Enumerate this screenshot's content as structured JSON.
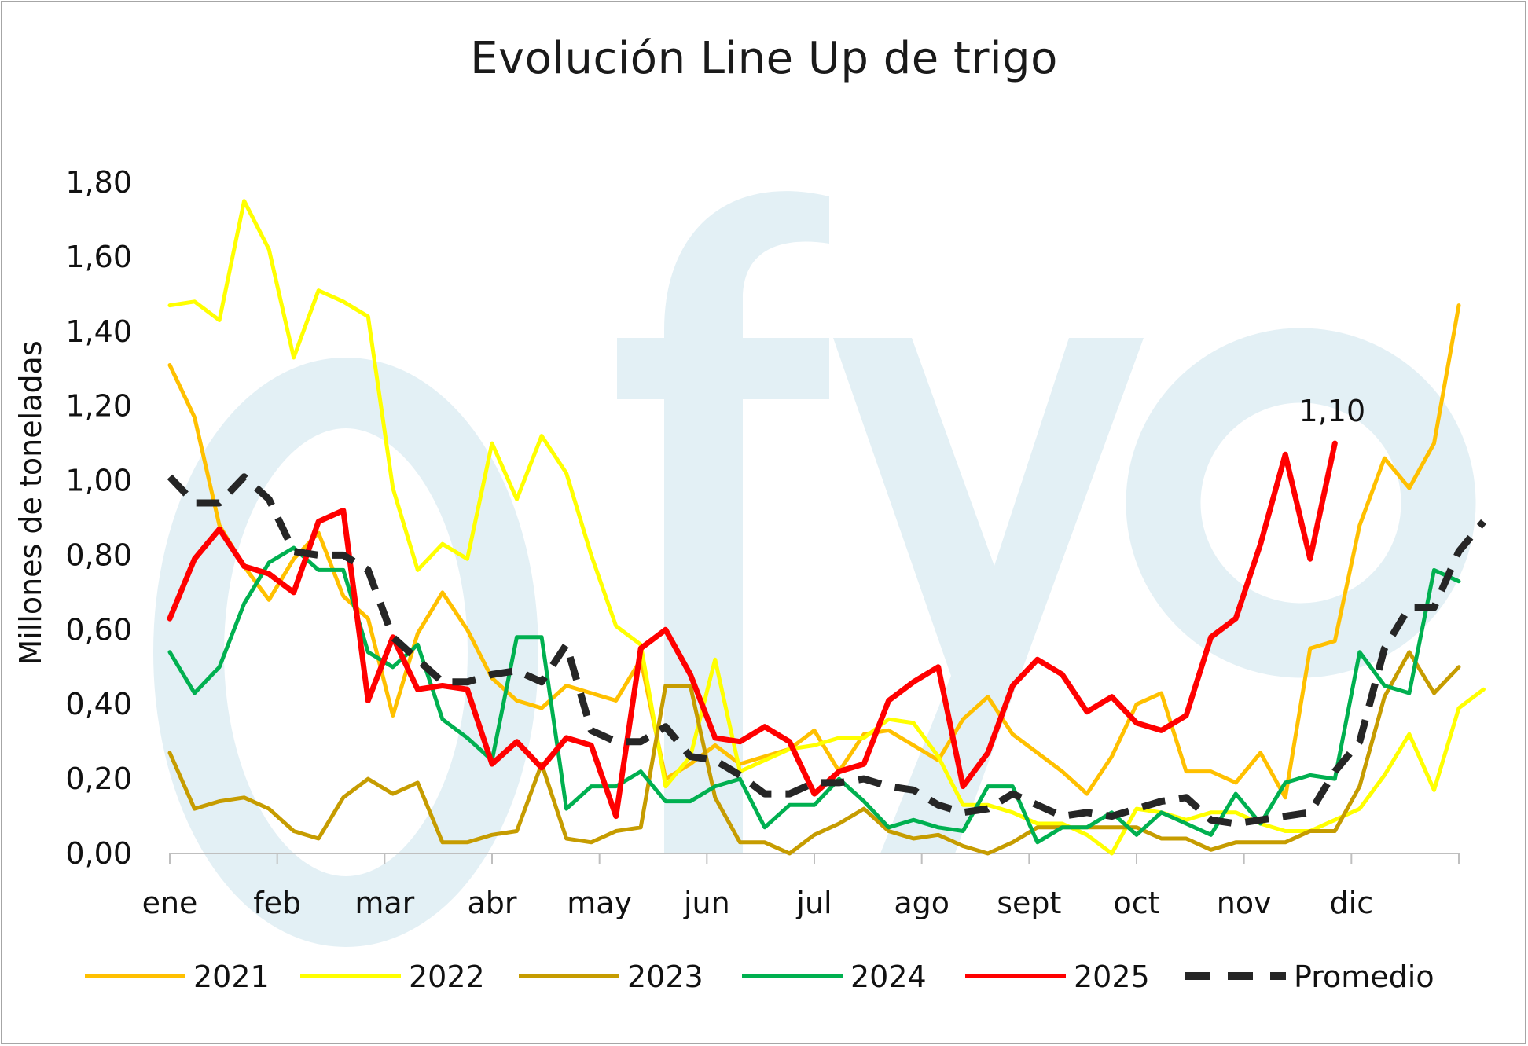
{
  "chart_data": {
    "type": "line",
    "title": "Evolución Line Up de trigo",
    "ylabel": "Millones de toneladas",
    "xlabel": "",
    "ylim": [
      0,
      1.8
    ],
    "yticks": [
      "0,00",
      "0,20",
      "0,40",
      "0,60",
      "0,80",
      "1,00",
      "1,20",
      "1,40",
      "1,60",
      "1,80"
    ],
    "ytick_values": [
      0,
      0.2,
      0.4,
      0.6,
      0.8,
      1.0,
      1.2,
      1.4,
      1.6,
      1.8
    ],
    "months": [
      "ene",
      "feb",
      "mar",
      "abr",
      "may",
      "jun",
      "jul",
      "ago",
      "sept",
      "oct",
      "nov",
      "dic"
    ],
    "weeks": 52,
    "legend_position": "bottom",
    "grid": false,
    "watermark": "fyo",
    "watermark_color": "#e3f0f5",
    "annotation": {
      "text": "1,10",
      "series": "2025",
      "week": 48
    },
    "series": [
      {
        "name": "2021",
        "color": "#ffc000",
        "width": 5,
        "dashed": false,
        "values": [
          1.31,
          1.17,
          0.88,
          0.77,
          0.68,
          0.79,
          0.86,
          0.69,
          0.63,
          0.37,
          0.59,
          0.7,
          0.6,
          0.47,
          0.41,
          0.39,
          0.45,
          0.43,
          0.41,
          0.52,
          0.2,
          0.24,
          0.29,
          0.24,
          0.26,
          0.28,
          0.33,
          0.22,
          0.32,
          0.33,
          0.29,
          0.25,
          0.36,
          0.42,
          0.32,
          0.27,
          0.22,
          0.16,
          0.26,
          0.4,
          0.43,
          0.22,
          0.22,
          0.19,
          0.27,
          0.15,
          0.55,
          0.57,
          0.88,
          1.06,
          0.98,
          1.1,
          1.47
        ]
      },
      {
        "name": "2022",
        "color": "#ffff00",
        "width": 5,
        "dashed": false,
        "values": [
          1.47,
          1.48,
          1.43,
          1.75,
          1.62,
          1.33,
          1.51,
          1.48,
          1.44,
          0.98,
          0.76,
          0.83,
          0.79,
          1.1,
          0.95,
          1.12,
          1.02,
          0.8,
          0.61,
          0.56,
          0.18,
          0.26,
          0.52,
          0.22,
          0.25,
          0.28,
          0.29,
          0.31,
          0.31,
          0.36,
          0.35,
          0.26,
          0.13,
          0.13,
          0.11,
          0.08,
          0.08,
          0.05,
          0.0,
          0.12,
          0.11,
          0.09,
          0.11,
          0.11,
          0.08,
          0.06,
          0.06,
          0.09,
          0.12,
          0.21,
          0.32,
          0.17,
          0.39,
          0.44
        ]
      },
      {
        "name": "2023",
        "color": "#c69c00",
        "width": 5,
        "dashed": false,
        "values": [
          0.27,
          0.12,
          0.14,
          0.15,
          0.12,
          0.06,
          0.04,
          0.15,
          0.2,
          0.16,
          0.19,
          0.03,
          0.03,
          0.05,
          0.06,
          0.24,
          0.04,
          0.03,
          0.06,
          0.07,
          0.45,
          0.45,
          0.15,
          0.03,
          0.03,
          0.0,
          0.05,
          0.08,
          0.12,
          0.06,
          0.04,
          0.05,
          0.02,
          0.0,
          0.03,
          0.07,
          0.07,
          0.07,
          0.07,
          0.07,
          0.04,
          0.04,
          0.01,
          0.03,
          0.03,
          0.03,
          0.06,
          0.06,
          0.18,
          0.42,
          0.54,
          0.43,
          0.5
        ]
      },
      {
        "name": "2024",
        "color": "#00b050",
        "width": 5,
        "dashed": false,
        "values": [
          0.54,
          0.43,
          0.5,
          0.67,
          0.78,
          0.82,
          0.76,
          0.76,
          0.54,
          0.5,
          0.56,
          0.36,
          0.31,
          0.25,
          0.58,
          0.58,
          0.12,
          0.18,
          0.18,
          0.22,
          0.14,
          0.14,
          0.18,
          0.2,
          0.07,
          0.13,
          0.13,
          0.2,
          0.14,
          0.07,
          0.09,
          0.07,
          0.06,
          0.18,
          0.18,
          0.03,
          0.07,
          0.07,
          0.11,
          0.05,
          0.11,
          0.08,
          0.05,
          0.16,
          0.08,
          0.19,
          0.21,
          0.2,
          0.54,
          0.45,
          0.43,
          0.76,
          0.73
        ]
      },
      {
        "name": "2025",
        "color": "#ff0000",
        "width": 7,
        "dashed": false,
        "values": [
          0.63,
          0.79,
          0.87,
          0.77,
          0.75,
          0.7,
          0.89,
          0.92,
          0.41,
          0.58,
          0.44,
          0.45,
          0.44,
          0.24,
          0.3,
          0.23,
          0.31,
          0.29,
          0.1,
          0.55,
          0.6,
          0.48,
          0.31,
          0.3,
          0.34,
          0.3,
          0.16,
          0.22,
          0.24,
          0.41,
          0.46,
          0.5,
          0.18,
          0.27,
          0.45,
          0.52,
          0.48,
          0.38,
          0.42,
          0.35,
          0.33,
          0.37,
          0.58,
          0.63,
          0.83,
          1.07,
          0.79,
          1.1
        ]
      },
      {
        "name": "Promedio",
        "color": "#262626",
        "width": 9,
        "dashed": true,
        "values": [
          1.01,
          0.94,
          0.94,
          1.01,
          0.95,
          0.81,
          0.8,
          0.8,
          0.76,
          0.58,
          0.52,
          0.46,
          0.46,
          0.48,
          0.49,
          0.46,
          0.56,
          0.33,
          0.3,
          0.3,
          0.34,
          0.26,
          0.25,
          0.21,
          0.16,
          0.16,
          0.19,
          0.19,
          0.2,
          0.18,
          0.17,
          0.13,
          0.11,
          0.12,
          0.16,
          0.13,
          0.1,
          0.11,
          0.1,
          0.12,
          0.14,
          0.15,
          0.09,
          0.08,
          0.09,
          0.1,
          0.11,
          0.22,
          0.3,
          0.55,
          0.66,
          0.66,
          0.81,
          0.89
        ]
      }
    ]
  }
}
